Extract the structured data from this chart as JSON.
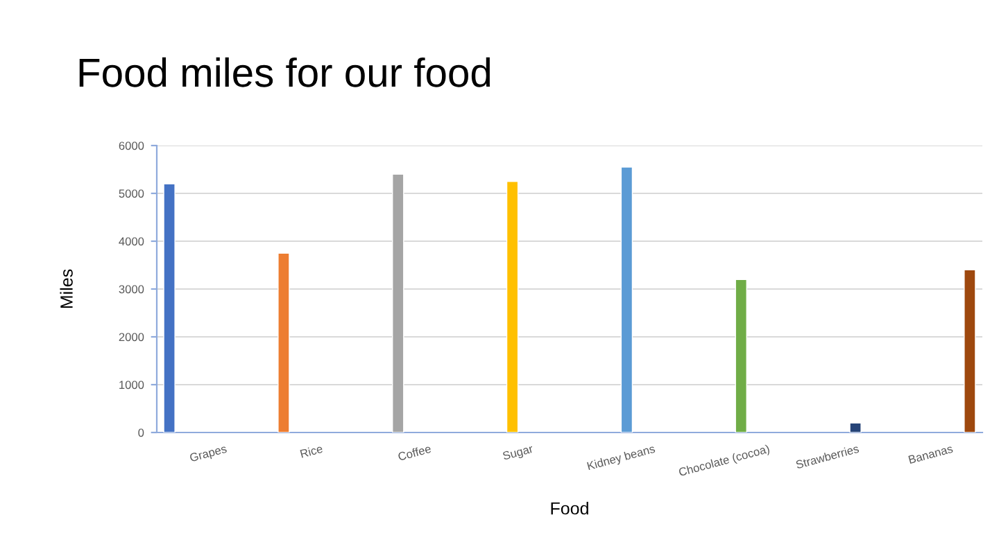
{
  "chart_data": {
    "type": "bar",
    "title": "Food miles for our food",
    "xlabel": "Food",
    "ylabel": "Miles",
    "categories": [
      "Grapes",
      "Rice",
      "Coffee",
      "Sugar",
      "Kidney beans",
      "Chocolate (cocoa)",
      "Strawberries",
      "Bananas"
    ],
    "series": [
      {
        "color": "#4472c4",
        "values": [
          5200,
          null,
          null,
          null,
          null,
          null,
          null,
          null
        ]
      },
      {
        "color": "#ed7d31",
        "values": [
          null,
          3750,
          null,
          null,
          null,
          null,
          null,
          null
        ]
      },
      {
        "color": "#a5a5a5",
        "values": [
          null,
          null,
          5400,
          null,
          null,
          null,
          null,
          null
        ]
      },
      {
        "color": "#ffc000",
        "values": [
          null,
          null,
          null,
          5250,
          null,
          null,
          null,
          null
        ]
      },
      {
        "color": "#5b9bd5",
        "values": [
          null,
          null,
          null,
          null,
          5550,
          null,
          null,
          null
        ]
      },
      {
        "color": "#70ad47",
        "values": [
          null,
          null,
          null,
          null,
          null,
          3200,
          null,
          null
        ]
      },
      {
        "color": "#264478",
        "values": [
          null,
          null,
          null,
          null,
          null,
          null,
          200,
          null
        ]
      },
      {
        "color": "#9e480e",
        "values": [
          null,
          null,
          null,
          null,
          null,
          null,
          null,
          3400
        ]
      }
    ],
    "ylim": [
      0,
      6000
    ],
    "yticks": [
      0,
      1000,
      2000,
      3000,
      4000,
      5000,
      6000
    ],
    "grid": "y",
    "legend": false
  }
}
